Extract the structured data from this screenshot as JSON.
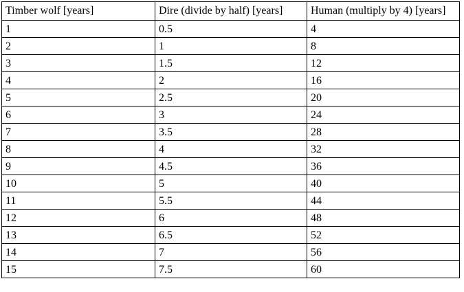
{
  "page": {
    "background_color": "#ffffff",
    "text_color": "#000000",
    "table_border_color": "#000000"
  },
  "table": {
    "headers": [
      "Timber wolf [years]",
      "Dire (divide by half) [years]",
      "Human (multiply by 4) [years]"
    ],
    "rows": [
      [
        "1",
        "0.5",
        "4"
      ],
      [
        "2",
        "1",
        "8"
      ],
      [
        "3",
        "1.5",
        "12"
      ],
      [
        "4",
        "2",
        "16"
      ],
      [
        "5",
        "2.5",
        "20"
      ],
      [
        "6",
        "3",
        "24"
      ],
      [
        "7",
        "3.5",
        "28"
      ],
      [
        "8",
        "4",
        "32"
      ],
      [
        "9",
        "4.5",
        "36"
      ],
      [
        "10",
        "5",
        "40"
      ],
      [
        "11",
        "5.5",
        "44"
      ],
      [
        "12",
        "6",
        "48"
      ],
      [
        "13",
        "6.5",
        "52"
      ],
      [
        "14",
        "7",
        "56"
      ],
      [
        "15",
        "7.5",
        "60"
      ]
    ]
  }
}
